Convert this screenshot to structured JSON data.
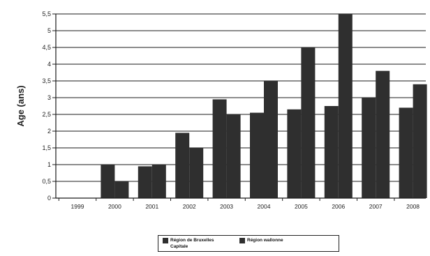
{
  "chart_data": {
    "type": "bar",
    "title": "",
    "xlabel": "",
    "ylabel": "Age (ans)",
    "ylim": [
      0,
      5.5
    ],
    "yticks": [
      "0",
      "0,5",
      "1",
      "1,5",
      "2",
      "2,5",
      "3",
      "3,5",
      "4",
      "4,5",
      "5",
      "5,5"
    ],
    "categories": [
      "1999",
      "2000",
      "2001",
      "2002",
      "2003",
      "2004",
      "2005",
      "2006",
      "2007",
      "2008"
    ],
    "series": [
      {
        "name": "Région de Bruxelles Capitale",
        "color": "#2f2f2f",
        "values": [
          0,
          1.0,
          0.95,
          1.95,
          2.95,
          2.55,
          2.65,
          2.75,
          3.0,
          2.7
        ]
      },
      {
        "name": "Région wallonne",
        "color": "#2f2f2f",
        "values": [
          0,
          0.5,
          1.0,
          1.5,
          2.5,
          3.5,
          4.5,
          5.5,
          3.8,
          3.4
        ]
      }
    ],
    "grid": true,
    "legend_position": "bottom"
  },
  "legend": {
    "series1_line1": "Région de Bruxelles",
    "series1_line2": "Capitale",
    "series2": "Région wallonne"
  }
}
